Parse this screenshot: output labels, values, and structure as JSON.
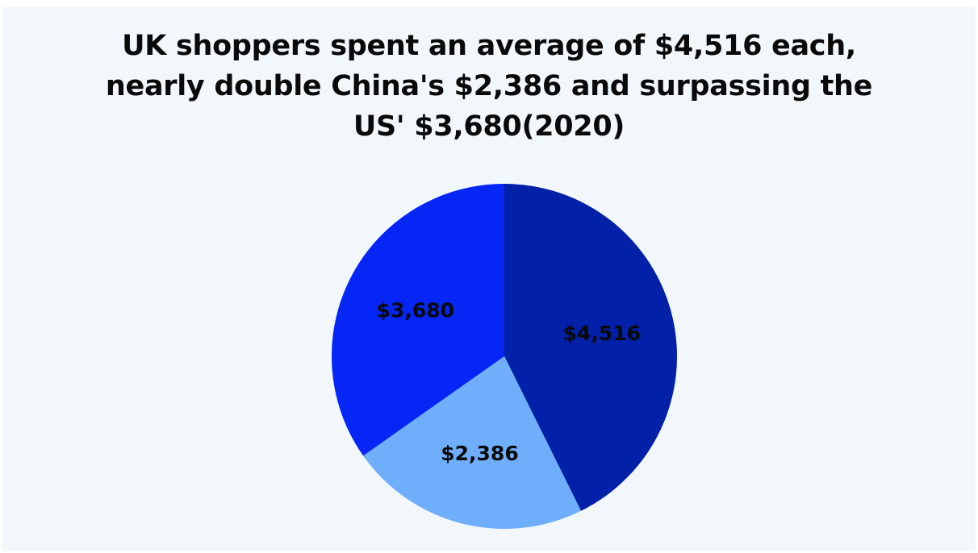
{
  "title_lines": [
    "UK shoppers spent an average of $4,516 each,",
    "nearly double China's $2,386 and surpassing the",
    "US' $3,680(2020)"
  ],
  "chart_data": {
    "type": "pie",
    "title": "UK shoppers spent an average of $4,516 each, nearly double China's $2,386 and surpassing the US' $3,680(2020)",
    "start_angle_deg": 0,
    "direction": "clockwise",
    "legend": "none",
    "slices": [
      {
        "value": 4516,
        "label": "$4,516",
        "color": "#0220a8"
      },
      {
        "value": 2386,
        "label": "$2,386",
        "color": "#6eaefa"
      },
      {
        "value": 3680,
        "label": "$3,680",
        "color": "#0626f5"
      }
    ]
  }
}
